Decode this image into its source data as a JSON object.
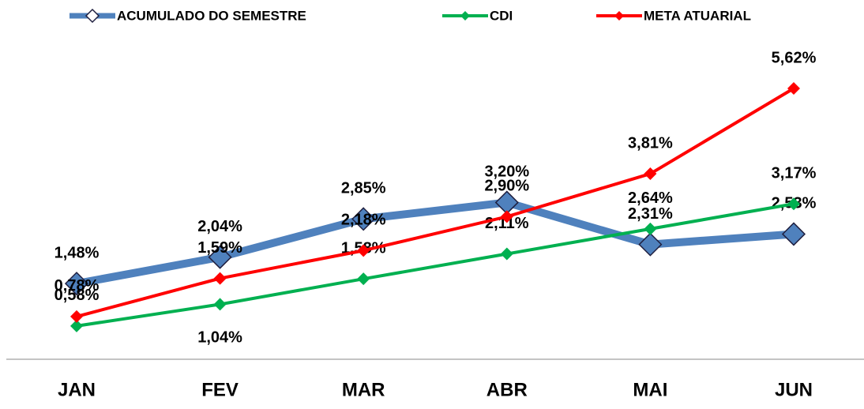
{
  "chart_data": {
    "type": "line",
    "categories": [
      "JAN",
      "FEV",
      "MAR",
      "ABR",
      "MAI",
      "JUN"
    ],
    "series": [
      {
        "name": "ACUMULADO DO SEMESTRE",
        "color": "#4f81bd",
        "values": [
          1.48,
          2.04,
          2.85,
          3.2,
          2.31,
          2.53
        ],
        "value_labels": [
          "1,48%",
          "2,04%",
          "2,85%",
          "3,20%",
          "2,31%",
          "2,53%"
        ]
      },
      {
        "name": "CDI",
        "color": "#00b050",
        "values": [
          0.58,
          1.04,
          1.58,
          2.11,
          2.64,
          3.17
        ],
        "value_labels": [
          "0,58%",
          "1,04%",
          "1,58%",
          "2,11%",
          "2,64%",
          "3,17%"
        ]
      },
      {
        "name": "META ATUARIAL",
        "color": "#ff0000",
        "values": [
          0.78,
          1.59,
          2.18,
          2.9,
          3.81,
          5.62
        ],
        "value_labels": [
          "0,78%",
          "1,59%",
          "2,18%",
          "2,90%",
          "3,81%",
          "5,62%"
        ]
      }
    ],
    "ylim": [
      0,
      7
    ],
    "legend": "top"
  }
}
